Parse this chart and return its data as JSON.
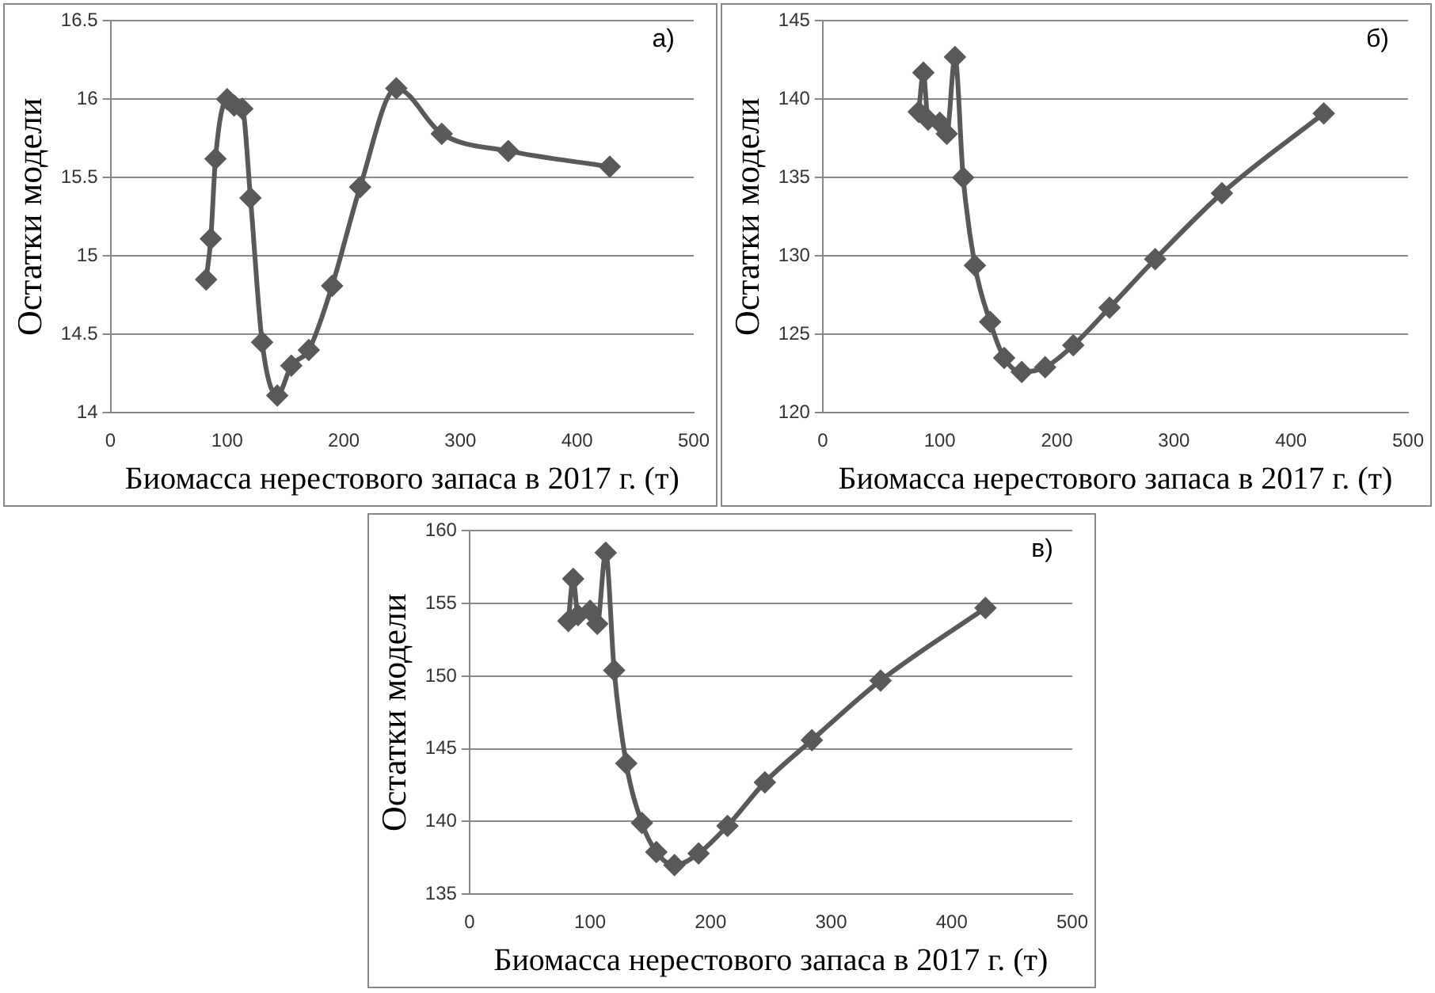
{
  "chart_data": [
    {
      "type": "line",
      "xlabel": "Биомасса нерестового запаса в 2017 г. (т)",
      "ylabel": "Остатки модели",
      "annotations": [
        "а)"
      ],
      "x": [
        82,
        86,
        90,
        100,
        106,
        113,
        120,
        130,
        143,
        155,
        170,
        190,
        214,
        245,
        284,
        341,
        428
      ],
      "series": [
        {
          "color": "#595959",
          "values": [
            14.85,
            15.11,
            15.62,
            16.0,
            15.96,
            15.94,
            15.37,
            14.45,
            14.11,
            14.3,
            14.4,
            14.81,
            15.44,
            16.07,
            15.78,
            15.67,
            15.57
          ]
        }
      ],
      "xlim": [
        0,
        500
      ],
      "xticks": [
        0,
        100,
        200,
        300,
        400,
        500
      ],
      "ylim": [
        14,
        16.5
      ],
      "yticks": [
        14,
        14.5,
        15,
        15.5,
        16,
        16.5
      ],
      "grid": "y",
      "legend": false,
      "marker": "diamond",
      "line_style": "solid"
    },
    {
      "type": "line",
      "xlabel": "Биомасса нерестового запаса в 2017 г. (т)",
      "ylabel": "Остатки модели",
      "annotations": [
        "б)"
      ],
      "x": [
        82,
        86,
        90,
        100,
        106,
        113,
        120,
        130,
        143,
        155,
        170,
        190,
        214,
        245,
        284,
        341,
        428
      ],
      "series": [
        {
          "color": "#595959",
          "values": [
            139.2,
            141.7,
            138.7,
            138.5,
            137.8,
            142.7,
            135.0,
            129.4,
            125.8,
            123.5,
            122.6,
            122.9,
            124.3,
            126.7,
            129.8,
            134.0,
            139.1
          ]
        }
      ],
      "xlim": [
        0,
        500
      ],
      "xticks": [
        0,
        100,
        200,
        300,
        400,
        500
      ],
      "ylim": [
        120,
        145
      ],
      "yticks": [
        120,
        125,
        130,
        135,
        140,
        145
      ],
      "grid": "y",
      "legend": false,
      "marker": "diamond",
      "line_style": "solid"
    },
    {
      "type": "line",
      "xlabel": "Биомасса нерестового запаса в 2017 г. (т)",
      "ylabel": "Остатки модели",
      "annotations": [
        "в)"
      ],
      "x": [
        82,
        86,
        90,
        100,
        106,
        113,
        120,
        130,
        143,
        155,
        170,
        190,
        214,
        245,
        284,
        341,
        428
      ],
      "series": [
        {
          "color": "#595959",
          "values": [
            153.8,
            156.7,
            154.2,
            154.5,
            153.6,
            158.5,
            150.4,
            144.0,
            139.9,
            137.9,
            137.0,
            137.8,
            139.7,
            142.7,
            145.6,
            149.7,
            154.7
          ]
        }
      ],
      "xlim": [
        0,
        500
      ],
      "xticks": [
        0,
        100,
        200,
        300,
        400,
        500
      ],
      "ylim": [
        135,
        160
      ],
      "yticks": [
        135,
        140,
        145,
        150,
        155,
        160
      ],
      "grid": "y",
      "legend": false,
      "marker": "diamond",
      "line_style": "solid"
    }
  ]
}
